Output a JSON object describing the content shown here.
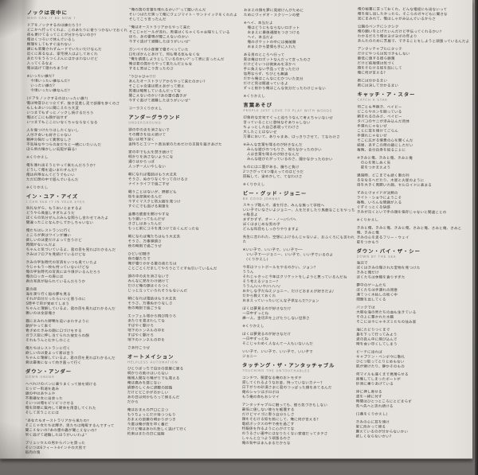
{
  "document": {
    "kind_label": "lyric-sheet-scan",
    "accent_colors": {
      "paper": "#e5e2dd",
      "ink": "#403d3a",
      "title_ink": "#2f2c29",
      "subtitle_ink": "#8d8983",
      "backing": "#8b8885"
    }
  },
  "columns": [
    {
      "blocks": [
        {
          "t": "ノックは夜中に",
          "e": "WHO CAN IT BE NOW ?"
        },
        {
          "l": [
            "ドアをノックするのは誰だろう?",
            "どこかへ行ってくれよ、このあたりに寄りつかないでおくれ",
            "夜も更けてるってことが分からないのか?",
            "俺はくつろいで休んでいるし",
            "無理をしてもすぐ出れない",
            "誰にも邪魔されずムードでいたいだけなんだ",
            "近くに来るなよ、家宅侵入はよしておくれ",
            "あたりをうろつくぶんにはかまわないけど",
            "入ってくるなよ",
            "俺は逃げて隠れちまうぜ"
          ]
        },
        {
          "l": [
            "※いったい誰だ?",
            "　今頃いったい誰なんだ?",
            "　いったい誰だ?",
            "　今頃いったい誰なんだ?"
          ]
        },
        {
          "l": [
            "(ドアをノックするのはいったい誰?)",
            "俺は物音ひとつ立てず、抜き足差し足で部屋を歩くのさ",
            "もしもあいつに聞こえたら大変",
            "いつまでもずっとノックし続けるだろう",
            "俺はどこにも顔が出せず",
            "いつまでもここにいなくちゃならなくなる"
          ]
        },
        {
          "l": [
            "人を傷つけたりはしたくないし",
            "人付き合いも好きじゃない",
            "精神分裂だって異常なしさ",
            "不気味なやつらの友だちと一緒にいたいんだ",
            "ほら例の懐かしい気配が蘇る!"
          ]
        },
        {
          "l": [
            "※くりかえし"
          ]
        },
        {
          "l": [
            "俺を連れ出そうとやって来たんだろうか?",
            "どうして俺を追いまわすんだ?",
            "俺は兵隊なんてどうでもいい",
            "ただ幻想の中で遊んでいるんだ"
          ]
        },
        {
          "l": [
            "※くりかえし"
          ]
        },
        {
          "t": "イン・ユア・アイズ",
          "e": "I CAN SEE IT IN YOUR EYES"
        },
        {
          "l": [
            "失礼ながら、もうおいとまするよ",
            "どうやら長居しすぎたようだ",
            "ぼくらの気分ぜんぶみんな照らし合わせてみたよ",
            "間違ったことなんかしでかしちゃいない"
          ]
        },
        {
          "l": [
            "俺たちはレストランに行く",
            "ところが君はワインが嫌い",
            "欲しいのは愛だけよって言うけど",
            "時間がないんだよ",
            "ちゃんと気づいているよ、君の目を見ればわかるんだ",
            "きみはフロアを見続けているけどな"
          ]
        },
        {
          "l": [
            "きみの学生時代の写真をいつも見ていたよ",
            "今じゃもう一枚も持っていないけどな",
            "俺の学生時代の写真には今頃がいるんだろう",
            "俺のロッカーの扉には",
            "君の写真が貼られているんだろうか"
          ]
        },
        {
          "l": [
            "夏の夜",
            "海を渡り行く船の夢を見る",
            "それが自分だったらいいと思うのに",
            "5時半で目が覚めてしまう",
            "ちゃんと理解しているよ、君の目を見ればわかるんだ",
            "悪いのは全部俺さ"
          ]
        },
        {
          "l": [
            "霧にまみれた野鴨を追いまわすように",
            "朝がやって来て",
            "青ざめたきみの顔に口づけをする",
            "ガラス窓に押し当てられた彼女らの顔",
            "それもうんとむかしのこと"
          ]
        },
        {
          "l": [
            "俺たちはレストランに行く",
            "欲しいのは愛よって君は言う",
            "ちゃんと理解しているよ、君の目を見ればわかるんだ",
            "君は最後になって向き直って行く"
          ]
        },
        {
          "t": "ダウン・アンダー",
          "e": "DOWN UNDER"
        },
        {
          "l": [
            "ヘベれけのバンに乗りまくって旅を続ける",
            "ヒッピー街道を進み",
            "頭の中はあやふや",
            "不思議な女に出会った",
            "そいつは俺をビリビリさせる",
            "俺を部屋に案内して朝食を用意してくれた",
            "そして言うことには"
          ]
        },
        {
          "l": [
            "“あなたもオーストラリアから来たの?",
            "そこじゃ女たちは輝き、男たちは略奪するんですって",
            "聞こえないの?あの雷の轟が聞こえないの?",
            "早く逃げて避難したほうがいいわよ”"
          ]
        },
        {
          "l": [
            "ブリュッセルの男からパンを買った",
            "そいつは6フィート4インチの大男で",
            "筋肉の塊"
          ]
        }
      ]
    },
    {
      "blocks": [
        {
          "l": [
            "“俺の国の言葉を喋れるかい?”って聞いたんだ",
            "そいつはただ笑って俺にヴェジマイト・サンドイッチをくれたよ",
            "そしてこう言ったんだ"
          ]
        },
        {
          "l": [
            "“俺はオーストラリアからやって来た",
            "そこじゃビールが流れ、男達はくちゃくちゃお喋りしている",
            "ほら、あの雷鳴が聞こえないのかい",
            "今すぐ逃げて避難したほうがいいぜ”"
          ]
        },
        {
          "l": [
            "ガンベイの小部屋で寝そべっていた",
            "口をぽかんとあけて、何も喋る気もなくな",
            "“俺を誘惑しようとしているのかい?”って男に言ったんだ",
            "俺は君の国からやって来たんだともな",
            "すると男はこう言ったのさ"
          ]
        },
        {
          "l": [
            "“うひゃひゃ!!!!",
            "あんたオーストラリアからやって来たのかい?",
            "そこじゃ女達は燃えあがって燃え",
            "男達は略奪しているんだってな",
            "聞こえないのかい?あの雷の轟きが",
            "今すぐ逃げて避難したほうがいいぜ”"
          ]
        },
        {
          "l": [
            "コーラスくりかえし"
          ]
        },
        {
          "t": "アンダーグラウンド",
          "e": "UNDERGROUND"
        },
        {
          "l": [
            "頭の中の炎を消さないで",
            "その輝きを伝え続けて",
            "狙いは地下深く",
            "金持ちとエリート政治家のためだけの王国を築きあげた"
          ]
        },
        {
          "l": [
            "家の中でも火を焚き続けて",
            "明かりを消さないようにな",
            "通りはからっぽ",
            "人っ子一人いやしない"
          ]
        },
        {
          "l": [
            "朝になれば電話はもう大丈夫",
            "そうさ、ぬかりなくやってのけるさ",
            "ナイトライフで過ごすぜ"
          ]
        },
        {
          "l": [
            "戦うことはないが、野郎ども",
            "街を全部固めるんだ",
            "今すぐマスクと防火服を見つけ",
            "すぐにでも逃げる用意を"
          ]
        },
        {
          "l": [
            "金庫の鉄扉を開けやすな",
            "もう遅いってもんだぜ",
            "きざしはあったんだ",
            "もっと前にコネを見つけておくんだったな"
          ]
        },
        {
          "l": [
            "朝になれば俺たちはもう大丈夫",
            "そうさ、万事順調さ",
            "夜の時刻で過ごうぜ"
          ]
        },
        {
          "l": [
            "ひどい幻聴き",
            "夜の闇たちで",
            "俺が寝りかかる夏の夜たちは",
            "ことごとくだましてやろうとてぐすね引いているんだ"
          ]
        },
        {
          "l": [
            "頭の中の炎を消さないで",
            "みんなに熱をわけ続けて",
            "だけど俺の頭はぐらつく",
            "じっと立っていられそうもないんだ"
          ]
        },
        {
          "l": [
            "朝になれば電話はもう大丈夫",
            "そうさ、万事ぬかりなしさ",
            "夜の時刻で過ごうな"
          ]
        },
        {
          "l": [
            "エッフェル塔から飛び降りろ",
            "あたりを見まわしてな",
            "すばやく駆けろ",
            "地下のトンネルの中を",
            "すばやく駆けろ",
            "地下のトンネルの中を"
          ]
        },
        {
          "l": [
            "さあ行こうぜ"
          ]
        },
        {
          "t": "オートメイション",
          "e": "HELPLESS AUTOMATION"
        },
        {
          "l": [
            "ひとりぼっちで自分の部屋に居る",
            "明かりの助けはいらない",
            "機械人間なら暗がりでも見える",
            "俺は痛みを感じない",
            "調節のしくみに調整の回路",
            "だけどどこかがおかしい",
            "あの日は何かもらって帰るんだ",
            "だから"
          ]
        },
        {
          "l": [
            "俺はおまえの戸口に立つ",
            "もうちょっとだけ待つつもり",
            "おまえの部屋の明かりがつき",
            "今度は俺が扉を叩く番だ",
            "だけど俺はあわれ悲しく逃げて行く",
            "約束はまたの日に延期"
          ]
        }
      ]
    },
    {
      "blocks": [
        {
          "l": [
            "おまえの顔を夢に見続けんがために",
            "ためにヴィデオ・スクリーンの壁"
          ]
        },
        {
          "l": [
            "※ヘイ、本当だよ",
            "　俺はどうにもならないロボット",
            "　おまえに最後通牒をつきつける",
            "　ヘイ、本当だよ",
            "　俺のポケットの中には機械類",
            "　おまえから愛情も手に入れた"
          ]
        },
        {
          "l": [
            "ある男のところへ行って",
            "実は俺はロボットなんだって言ったのさ",
            "だけどそいつは微笑みを浮かべ",
            "手に負えない手品って言っただけ",
            "信用ならず、ちびとも無論",
            "だから俺はこんなにむかついた気分",
            "だけど男は間違っているよ",
            "ずっと前から俺はこんな気分だったわけじゃない"
          ]
        },
        {
          "l": [
            "※くりかえし"
          ]
        },
        {
          "t": "言葉あそび",
          "e": "PEOPLE JUST LOVE TO PLAY WITH WORDS"
        },
        {
          "l": [
            "印象的な文句でぐっと迫ろうなんて考えちゃいないぜ",
            "言っていることに意味なぞありゃしない",
            "ちょっとした自己表現ってわけさ",
            "大したことはないぜ",
            "万事において、ありゃまあ、はっきりさせて、てなわけさ"
          ]
        },
        {
          "l": [
            "※みんな言葉を喋るのが好きなんだ",
            "　みんな遊びのつもりさ、知らなかったのかい",
            "　人は言葉を喋るのが好きなんだ",
            "　みんな遊びたがっているのさ、聞かなかったのかい"
          ]
        },
        {
          "l": [
            "ものには二面がある、勝ちと負け",
            "2つさがって4つ増えってのはどうだ",
            "回転して、宙めかして、てなわけさ"
          ]
        },
        {
          "l": [
            "※くりかえし"
          ]
        },
        {
          "t": "ビー・グッド・ジョニー",
          "e": "BE GOOD JOHNNY"
        },
        {
          "l": [
            "スキップ踏んで、道を行き、みんな揃って学校へ",
            "いい子でいなさいよジョニー、人をだましたり馬鹿なことをやっちゃ駄目よ",
            "まずかずず、オー・ノー/パパへ",
            "ぼくはまじめな男の子",
            "どんな科目もしっかりやりますよ"
          ]
        },
        {
          "l": [
            "先生に言われた、空想にふけるんじゃないよ、おふくろにも言われた"
          ]
        },
        {
          "l": [
            "※いい子で、いい子で、いい子で──",
            "　いい子で──ジョニー、いい子で、いい子でいるのよ",
            "　(くりかえし)"
          ]
        },
        {
          "l": [
            "今年はフットボールをやるのかい、ジョン?",
            "ううん",
            "それじゃきっと今年はクリケットをしようと思っているんだね",
            "そう考えるジョニー?",
            "ううん/いいや/ハハハ/",
            "おかしな子だねえジョニー、だけどおまえが好きだよ/",
            "だから教えておくれ",
            "おまえっていったいどんな子供なんだ?ジョン"
          ]
        },
        {
          "l": [
            "ぼくは夢見るのが好きなだけ",
            "一日中ずっとね",
            "誰一人、金切声を上げたりしない世界さ"
          ]
        },
        {
          "l": [
            "※くりかえし"
          ]
        },
        {
          "l": [
            "ぼくは夢見るのが好きなだけ",
            "一日中ずっとね",
            "そこじゃわめく人なんて一人もいないんだ"
          ]
        },
        {
          "l": [
            "いい子で、いい子で、いい子で、いい子で",
            "ジョニー"
          ]
        },
        {
          "t": "タッチング・ザ・アンタッチャブル",
          "e": "TOUCHING THE UNTOUCHABLES"
        },
        {
          "l": [
            "コンチワ、親愛なる俺のおトモダチ",
            "貸してくれるようなお金、持っていないカナー?",
            "日下がりの砂漠さまに君のつっぱった顔をあてるんだ",
            "俺のシャツはボロボロ",
            "もう俺の命もおシマイ"
          ]
        },
        {
          "l": [
            "アンタッチャブルに触っても、彼ら気づきもしない",
            "最低に値しない彼らを軽蔑する",
            "だけどマイゴに思う自分らしさ",
            "顔をそむける奴を前にして、俺に何が言える?",
            "電話ボックスの中で夜を過ごす",
            "特報係を作るように心がけてな",
            "のうるさい連中にはなりたくない家達だってタチさ",
            "しゃんと立つよう頑張るのさ",
            "俺の背中はまんまるだからな"
          ]
        }
      ]
    },
    {
      "blocks": [
        {
          "l": [
            "俺の秘書に言っておくれ、どんな電話にも出ないって",
            "俺を探し出したかったら、そこらのガキどもに聞きな",
            "泥にまみれて、俺はしゃがみ込んでいるからさ"
          ]
        },
        {
          "l": [
            "公園のベンチにシクシク",
            "俺の願いをとげたいんだけど手伝ってくれるかい?",
            "わかるだろう俺はヨボヨボの年より",
            "あんたのために芝居で、できることをしようと頑張っているんだよ"
          ]
        },
        {
          "l": [
            "アンタッチャブルにタッチ",
            "だけどやつらは気づきもしない",
            "最低に値する彼ら軽蔑",
            "だけど結局僕は気づく",
            "顔をそむける奴を前にして",
            "俺に何が言える?"
          ]
        },
        {
          "l": [
            "君には分かるまい",
            "君には決して分かるまい"
          ]
        },
        {
          "t": "キャッチ・ア・スター",
          "e": "CATCH A STAR"
        },
        {
          "l": [
            "何ごとも早飽き、ベイビー",
            "どこらやカンを囲っている",
            "頼まれるのみさ、ベイビー",
            "タバコのヤニが滲み込んだ肉体",
            "手遅れじゃないぜ",
            "ことに耳を傾けてごらん",
            "手遅れじゃないぜ",
            "そこに広がる情景の心を開くんだ",
            "結局、あすこの際の鏡にしただい",
            "毎晩、自分自身を知ることに"
          ]
        },
        {
          "l": [
            "※きみと俺、きみと俺、きみと俺",
            "　の心を刺しぬく矢",
            "　星をつかまえよう"
          ]
        },
        {
          "l": [
            "通過時、どこまでも続く車の列",
            "るななるへだたり、木星と火星のように",
            "目を大きく見開いた顔、セルロイドに表まる"
          ]
        },
        {
          "l": [
            "ずみとヴォイドが沈黙の",
            "ライト・ショウにようこそ",
            "毎晩、いろんな問題が入る",
            "ぐずぐっとくる快感",
            "きみが泣くといで手の顔を保存じゃないと間違ことの"
          ]
        },
        {
          "l": [
            "※くりかえし"
          ]
        },
        {
          "l": [
            "きみと俺、きみと俺、きみと俺、きみと俺、きみと俺、きみと",
            "俺、きみと俺",
            "きみの心を走るフリー・ウェイ",
            "星をつかもう"
          ]
        },
        {
          "t": "ダウン・バイ・ザ・シー",
          "e": "DOWN BY THE SEA"
        },
        {
          "l": [
            "海辺で",
            "ぼくはきみの隠された宝物を見つけた",
            "きみと俺だけ",
            "ぼくたちは休暇を貪りすぎた"
          ]
        },
        {
          "l": [
            "夢中のゲームたち",
            "ぼくたちは手遅れの用意",
            "凍てつく木枯しの吹く中",
            "問題を出してくる"
          ]
        },
        {
          "l": [
            "バックでは",
            "大胆な海の男たちの血も生きている",
            "その上に置かれた木箱",
            "そこには今じゃネズミたちの住み家"
          ]
        },
        {
          "l": [
            "海にたどりつくまで",
            "島を下って行ってみよう",
            "波の真ん中に飛び込んで",
            "時を食い尽くしてしまう"
          ]
        },
        {
          "l": [
            "ビーチに出れば",
            "キャプテン・ベンボウに敬礼",
            "ひとつ取ってとりとめもない",
            "肌が焼けたり、静かそのもの"
          ]
        },
        {
          "l": [
            "何マイルも遠くまで見晴らせる",
            "座礁してしまったボートが",
            "砂洲に乗りあげている"
          ]
        },
        {
          "l": [
            "岸に押し寄せる",
            "波を一掃に付す",
            "時間はひとつところにとどまらず",
            "先へ先へと流れ続ける"
          ]
        },
        {
          "l": [
            "(1番をくりかえし)"
          ]
        },
        {
          "l": [
            "きみの心に耳を傾け",
            "家に向かって帰る",
            "震えているのが分からないかい",
            "欲しくならないかい?"
          ]
        }
      ]
    }
  ]
}
